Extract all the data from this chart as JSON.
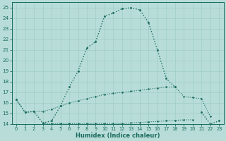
{
  "xlabel": "Humidex (Indice chaleur)",
  "background_color": "#b8ddd8",
  "line_color": "#1a6b5e",
  "grid_color": "#a0ccc6",
  "font_color": "#1a6b5e",
  "x_values": [
    0,
    1,
    2,
    3,
    4,
    5,
    6,
    7,
    8,
    9,
    10,
    11,
    12,
    13,
    14,
    15,
    16,
    17,
    18,
    19,
    20,
    21,
    22,
    23
  ],
  "curve_main": [
    16.3,
    15.1,
    15.2,
    14.1,
    14.3,
    15.7,
    17.5,
    19.0,
    21.2,
    21.8,
    24.2,
    24.5,
    24.9,
    25.0,
    24.8,
    23.6,
    21.0,
    18.3,
    17.5,
    null,
    null,
    15.1,
    14.0,
    14.3
  ],
  "curve_upper": [
    16.3,
    15.1,
    15.2,
    15.2,
    15.4,
    15.7,
    16.0,
    16.2,
    16.4,
    16.6,
    16.8,
    16.9,
    17.0,
    17.1,
    17.2,
    17.3,
    17.4,
    17.5,
    17.5,
    16.6,
    16.5,
    16.4,
    14.7,
    null
  ],
  "curve_lower": [
    null,
    null,
    null,
    14.05,
    14.05,
    14.05,
    14.05,
    14.05,
    14.05,
    14.05,
    14.05,
    14.05,
    14.05,
    14.1,
    14.15,
    14.2,
    14.25,
    14.3,
    14.35,
    14.4,
    14.4,
    null,
    null,
    null
  ],
  "ylim": [
    14,
    25.5
  ],
  "xlim": [
    -0.5,
    23.5
  ],
  "yticks": [
    14,
    15,
    16,
    17,
    18,
    19,
    20,
    21,
    22,
    23,
    24,
    25
  ],
  "xticks": [
    0,
    1,
    2,
    3,
    4,
    5,
    6,
    7,
    8,
    9,
    10,
    11,
    12,
    13,
    14,
    15,
    16,
    17,
    18,
    19,
    20,
    21,
    22,
    23
  ]
}
